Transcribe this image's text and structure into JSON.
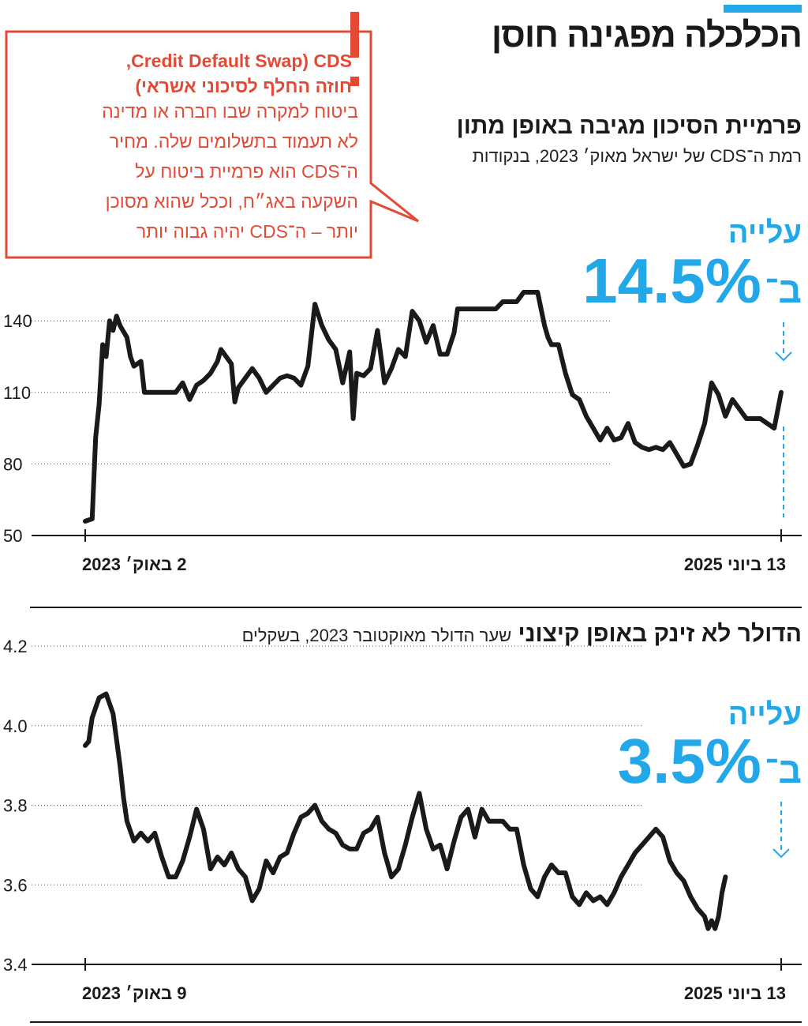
{
  "header": {
    "title": "הכלכלה מפגינה חוסן",
    "accent_color": "#22a7e8"
  },
  "callout": {
    "exclamation": "!",
    "line1": "Credit Default Swap) CDS,",
    "line2": "חוזה החלף לסיכוני אשראי)",
    "line3": "ביטוח למקרה שבו חברה או מדינה",
    "line4": "לא תעמוד בתשלומים שלה. מחיר",
    "line5": "ה־CDS הוא פרמיית ביטוח על",
    "line6": "השקעה באג״ח, וככל שהוא מסוכן",
    "line7": "יותר – ה־CDS יהיה גבוה יותר",
    "color": "#e24a36"
  },
  "chart1": {
    "heading": "פרמיית הסיכון מגיבה באופן מתון",
    "subheading": "רמת ה־CDS של ישראל מאוק׳ 2023, בנקודות",
    "rise_label": "עלייה",
    "rise_value": "14.5%",
    "rise_prefix": "ב־",
    "x_start_label": "2 באוק׳ 2023",
    "x_end_label": "13 ביוני 2025"
  },
  "chart2": {
    "heading": "הדולר לא זינק באופן קיצוני",
    "subheading": "שער הדולר מאוקטובר 2023, בשקלים",
    "rise_label": "עלייה",
    "rise_value": "3.5%",
    "rise_prefix": "ב־",
    "x_start_label": "9 באוק׳ 2023",
    "x_end_label": "13 ביוני 2025"
  },
  "chart_data": [
    {
      "type": "line",
      "title": "פרמיית הסיכון מגיבה באופן מתון",
      "subtitle": "רמת ה־CDS של ישראל מאוק׳ 2023, בנקודות",
      "ylim": [
        50,
        150
      ],
      "yticks": [
        50,
        80,
        110,
        140
      ],
      "grid": true,
      "x_start": "2 באוק׳ 2023",
      "x_end": "13 ביוני 2025",
      "x_range": [
        0,
        100
      ],
      "series": [
        {
          "values": [
            [
              0,
              56
            ],
            [
              1,
              57
            ],
            [
              1.5,
              91
            ],
            [
              2,
              105
            ],
            [
              2.5,
              130
            ],
            [
              3,
              125
            ],
            [
              3.5,
              140
            ],
            [
              4,
              136
            ],
            [
              4.5,
              142
            ],
            [
              5,
              138
            ],
            [
              6,
              133
            ],
            [
              6.5,
              125
            ],
            [
              7,
              121
            ],
            [
              8,
              123
            ],
            [
              8.5,
              110
            ],
            [
              9,
              110
            ],
            [
              10,
              110
            ],
            [
              11,
              110
            ],
            [
              12,
              110
            ],
            [
              13,
              110
            ],
            [
              14,
              114
            ],
            [
              15,
              107
            ],
            [
              16,
              113
            ],
            [
              17,
              115
            ],
            [
              18,
              118
            ],
            [
              19,
              123
            ],
            [
              19.5,
              128
            ],
            [
              21,
              122
            ],
            [
              21.5,
              106
            ],
            [
              22,
              112
            ],
            [
              23,
              116
            ],
            [
              24,
              120
            ],
            [
              25,
              116
            ],
            [
              26,
              110
            ],
            [
              27,
              113
            ],
            [
              28,
              116
            ],
            [
              29,
              117
            ],
            [
              30,
              116
            ],
            [
              31,
              113
            ],
            [
              32,
              121
            ],
            [
              33,
              147
            ],
            [
              34,
              138
            ],
            [
              35,
              132
            ],
            [
              36,
              128
            ],
            [
              37,
              114
            ],
            [
              38,
              127
            ],
            [
              38.5,
              99
            ],
            [
              39,
              118
            ],
            [
              40,
              117
            ],
            [
              41,
              120
            ],
            [
              42,
              136
            ],
            [
              43,
              114
            ],
            [
              44,
              120
            ],
            [
              45,
              128
            ],
            [
              46,
              125
            ],
            [
              47,
              144
            ],
            [
              48,
              140
            ],
            [
              49,
              131
            ],
            [
              50,
              138
            ],
            [
              51,
              126
            ],
            [
              52,
              126
            ],
            [
              53,
              135
            ],
            [
              53.5,
              145
            ],
            [
              54,
              145
            ],
            [
              55,
              145
            ],
            [
              56,
              145
            ],
            [
              57,
              145
            ],
            [
              58,
              145
            ],
            [
              59,
              145
            ],
            [
              60,
              148
            ],
            [
              61,
              148
            ],
            [
              62,
              148
            ],
            [
              63,
              152
            ],
            [
              64,
              152
            ],
            [
              65,
              152
            ],
            [
              66,
              138
            ],
            [
              66.5,
              133
            ],
            [
              67,
              130
            ],
            [
              68,
              130
            ],
            [
              69,
              118
            ],
            [
              70,
              109
            ],
            [
              71,
              107
            ],
            [
              72,
              100
            ],
            [
              73,
              95
            ],
            [
              74,
              90
            ],
            [
              75,
              95
            ],
            [
              76,
              90
            ],
            [
              77,
              91
            ],
            [
              78,
              97
            ],
            [
              79,
              89
            ],
            [
              80,
              87
            ],
            [
              81,
              86
            ],
            [
              82,
              87
            ],
            [
              83,
              86
            ],
            [
              84,
              89
            ],
            [
              85,
              84
            ],
            [
              86,
              79
            ],
            [
              87,
              80
            ],
            [
              88,
              88
            ],
            [
              89,
              97
            ],
            [
              90,
              114
            ],
            [
              91,
              109
            ],
            [
              92,
              100
            ],
            [
              93,
              107
            ],
            [
              94,
              103
            ],
            [
              95,
              99
            ],
            [
              96,
              99
            ],
            [
              97,
              99
            ],
            [
              98,
              97
            ],
            [
              99,
              95
            ],
            [
              100,
              110
            ]
          ]
        }
      ]
    },
    {
      "type": "line",
      "title": "הדולר לא זינק באופן קיצוני",
      "subtitle": "שער הדולר מאוקטובר 2023, בשקלים",
      "ylim": [
        3.4,
        4.2
      ],
      "yticks": [
        3.4,
        3.6,
        3.8,
        4.0,
        4.2
      ],
      "grid": true,
      "x_start": "9 באוק׳ 2023",
      "x_end": "13 ביוני 2025",
      "x_range": [
        0,
        100
      ],
      "series": [
        {
          "values": [
            [
              0,
              3.95
            ],
            [
              0.5,
              3.96
            ],
            [
              1,
              4.02
            ],
            [
              2,
              4.07
            ],
            [
              3,
              4.08
            ],
            [
              4,
              4.03
            ],
            [
              5,
              3.9
            ],
            [
              5.5,
              3.82
            ],
            [
              6,
              3.76
            ],
            [
              7,
              3.71
            ],
            [
              8,
              3.73
            ],
            [
              9,
              3.71
            ],
            [
              10,
              3.73
            ],
            [
              11,
              3.67
            ],
            [
              12,
              3.62
            ],
            [
              13,
              3.62
            ],
            [
              14,
              3.66
            ],
            [
              15,
              3.72
            ],
            [
              16,
              3.79
            ],
            [
              17,
              3.74
            ],
            [
              18,
              3.64
            ],
            [
              19,
              3.67
            ],
            [
              20,
              3.65
            ],
            [
              21,
              3.68
            ],
            [
              22,
              3.64
            ],
            [
              23,
              3.62
            ],
            [
              24,
              3.56
            ],
            [
              25,
              3.59
            ],
            [
              26,
              3.66
            ],
            [
              27,
              3.63
            ],
            [
              28,
              3.67
            ],
            [
              29,
              3.68
            ],
            [
              30,
              3.73
            ],
            [
              31,
              3.77
            ],
            [
              32,
              3.78
            ],
            [
              33,
              3.8
            ],
            [
              34,
              3.76
            ],
            [
              35,
              3.74
            ],
            [
              36,
              3.73
            ],
            [
              37,
              3.7
            ],
            [
              38,
              3.69
            ],
            [
              39,
              3.69
            ],
            [
              40,
              3.73
            ],
            [
              41,
              3.74
            ],
            [
              42,
              3.77
            ],
            [
              43,
              3.68
            ],
            [
              44,
              3.62
            ],
            [
              45,
              3.64
            ],
            [
              46,
              3.7
            ],
            [
              47,
              3.77
            ],
            [
              48,
              3.83
            ],
            [
              49,
              3.74
            ],
            [
              50,
              3.69
            ],
            [
              51,
              3.7
            ],
            [
              52,
              3.64
            ],
            [
              53,
              3.71
            ],
            [
              54,
              3.77
            ],
            [
              55,
              3.79
            ],
            [
              56,
              3.72
            ],
            [
              57,
              3.79
            ],
            [
              58,
              3.76
            ],
            [
              59,
              3.76
            ],
            [
              60,
              3.76
            ],
            [
              61,
              3.74
            ],
            [
              62,
              3.74
            ],
            [
              63,
              3.65
            ],
            [
              64,
              3.59
            ],
            [
              65,
              3.57
            ],
            [
              66,
              3.62
            ],
            [
              67,
              3.65
            ],
            [
              68,
              3.63
            ],
            [
              69,
              3.63
            ],
            [
              70,
              3.57
            ],
            [
              71,
              3.55
            ],
            [
              72,
              3.58
            ],
            [
              73,
              3.56
            ],
            [
              74,
              3.57
            ],
            [
              75,
              3.55
            ],
            [
              76,
              3.58
            ],
            [
              77,
              3.62
            ],
            [
              78,
              3.65
            ],
            [
              79,
              3.68
            ],
            [
              80,
              3.7
            ],
            [
              81,
              3.72
            ],
            [
              82,
              3.74
            ],
            [
              83,
              3.72
            ],
            [
              84,
              3.66
            ],
            [
              85,
              3.63
            ],
            [
              86,
              3.61
            ],
            [
              87,
              3.57
            ],
            [
              88,
              3.54
            ],
            [
              89,
              3.52
            ],
            [
              89.5,
              3.49
            ],
            [
              90,
              3.51
            ],
            [
              90.5,
              3.49
            ],
            [
              91,
              3.52
            ],
            [
              91.5,
              3.58
            ],
            [
              92,
              3.62
            ]
          ]
        }
      ]
    }
  ]
}
